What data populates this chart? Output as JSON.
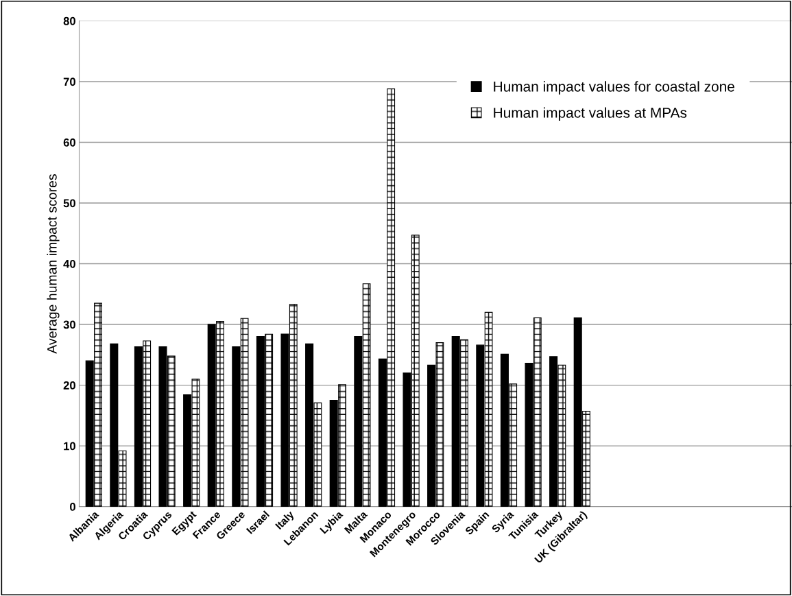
{
  "chart_data": {
    "type": "bar",
    "ylabel": "Average human impact scores",
    "categories": [
      "Albania",
      "Algeria",
      "Croatia",
      "Cyprus",
      "Egypt",
      "France",
      "Greece",
      "Israel",
      "Italy",
      "Lebanon",
      "Lybia",
      "Malta",
      "Monaco",
      "Montenegro",
      "Morocco",
      "Slovenia",
      "Spain",
      "Syria",
      "Tunisia",
      "Turkey",
      "UK (Gibraltar)",
      null,
      null,
      null,
      null,
      null,
      null,
      null,
      null
    ],
    "series": [
      {
        "name": "Human impact values for coastal zone",
        "color": "#000000",
        "values": [
          24,
          26.8,
          26.3,
          26.3,
          18.4,
          30,
          26.3,
          28,
          28.4,
          26.8,
          17.5,
          28,
          24.3,
          22,
          23.3,
          28,
          26.6,
          25.1,
          23.6,
          24.7,
          31.1,
          null,
          null,
          null,
          null,
          null,
          null,
          null,
          null
        ]
      },
      {
        "name": "Human impact values at MPAs",
        "color": "#000000",
        "values": [
          33.5,
          9.2,
          27.3,
          24.8,
          21,
          30.5,
          31,
          28.4,
          33.3,
          17.1,
          20.1,
          36.7,
          68.8,
          44.7,
          27,
          27.5,
          32,
          20.2,
          31.1,
          23.3,
          15.7,
          null,
          null,
          null,
          null,
          null,
          null,
          null,
          null
        ]
      }
    ],
    "ylim": [
      0,
      80
    ],
    "yticks": [
      0,
      10,
      20,
      30,
      40,
      50,
      60,
      70,
      80
    ],
    "grid": "y",
    "legend": "top right"
  }
}
